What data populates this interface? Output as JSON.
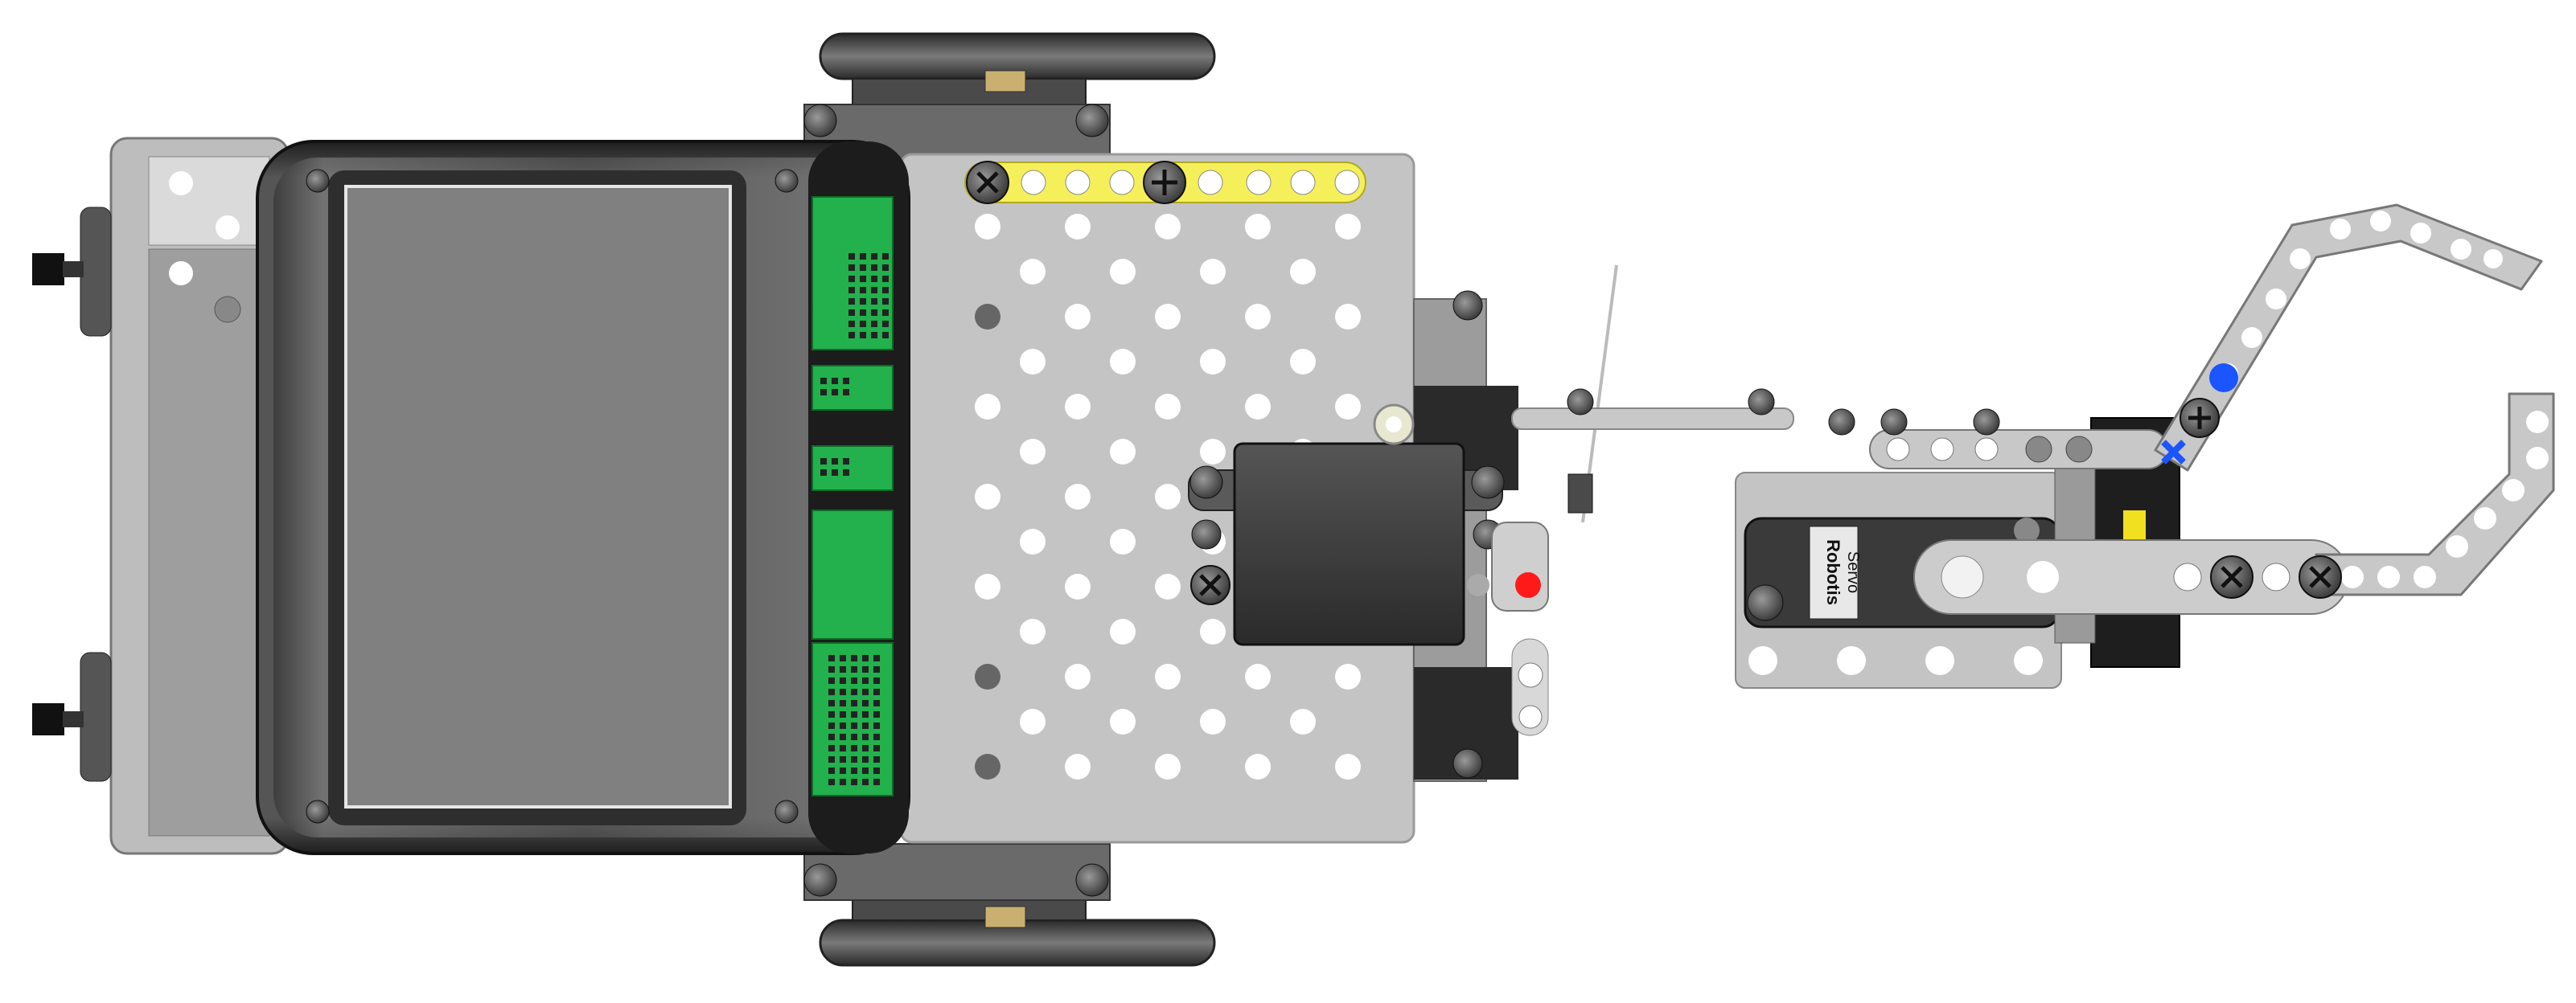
{
  "colors": {
    "background": "#ffffff",
    "chassis_plate": "#c4c4c4",
    "chassis_hole": "#ffffff",
    "screen_bezel": "#3a3a3a",
    "screen": "#808080",
    "screen_frame": "#e0e0e0",
    "pcb_green": "#22b14c",
    "yellow_beam": "#f5f05a",
    "wheel_tire": "#555555",
    "servo_body": "#404040",
    "arm_beam": "#c8c8c8",
    "accent_red": "#ff1a1a",
    "accent_blue": "#1a55ff",
    "servo_yellow": "#f0e020"
  },
  "servo_label": {
    "brand": "Robotis",
    "model": "Servo"
  },
  "icons": [
    "screw-icon",
    "wheel-icon",
    "pcb-connector-icon",
    "servo-horn-icon"
  ]
}
